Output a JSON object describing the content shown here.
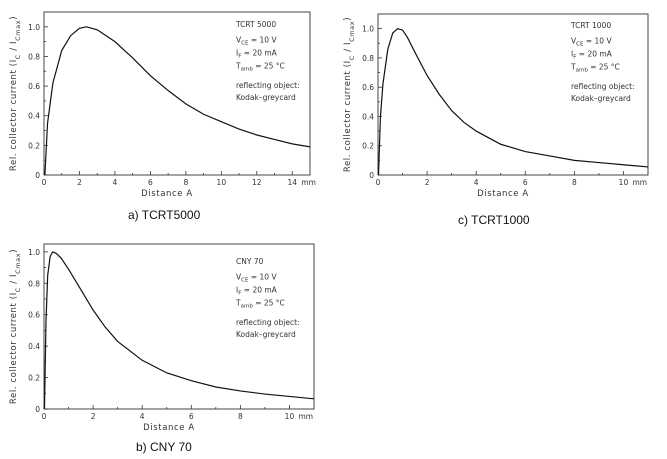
{
  "chart_data": [
    {
      "id": "tcrt5000",
      "type": "line",
      "caption": "a) TCRT5000",
      "title": "TCRT 5000",
      "xlabel": "Distance A",
      "x_unit": "mm",
      "ylabel": "Rel. collector current (I_C / I_Cmax)",
      "xlim": [
        0,
        15
      ],
      "ylim": [
        0,
        1.1
      ],
      "xticks": [
        0,
        2,
        4,
        6,
        8,
        10,
        12,
        14
      ],
      "yticks": [
        0,
        0.2,
        0.4,
        0.6,
        0.8,
        1.0
      ],
      "grid": false,
      "annotations": {
        "vce": "= 10 V",
        "if": "= 20 mA",
        "tamb": "= 25 °C",
        "object_line1": "reflecting object:",
        "object_line2": "Kodak–greycard"
      },
      "series": [
        {
          "x": [
            0.05,
            0.2,
            0.5,
            1.0,
            1.5,
            2.0,
            2.4,
            3.0,
            4.0,
            5.0,
            6.0,
            7.0,
            8.0,
            9.0,
            10.0,
            11.0,
            12.0,
            13.0,
            14.0,
            15.0
          ],
          "y": [
            0.0,
            0.35,
            0.62,
            0.84,
            0.94,
            0.99,
            1.0,
            0.98,
            0.9,
            0.79,
            0.67,
            0.57,
            0.48,
            0.41,
            0.36,
            0.31,
            0.27,
            0.24,
            0.21,
            0.19
          ]
        }
      ]
    },
    {
      "id": "tcrt1000",
      "type": "line",
      "caption": "c) TCRT1000",
      "title": "TCRT 1000",
      "xlabel": "Distance A",
      "x_unit": "mm",
      "ylabel": "Rel. collector current (I_C / I_Cmax)",
      "xlim": [
        0,
        11
      ],
      "ylim": [
        0,
        1.1
      ],
      "xticks": [
        0,
        2,
        4,
        6,
        8,
        10
      ],
      "yticks": [
        0,
        0.2,
        0.4,
        0.6,
        0.8,
        1.0
      ],
      "grid": false,
      "annotations": {
        "vce": "= 10 V",
        "if": "= 20 mA",
        "tamb": "= 25 °C",
        "object_line1": "reflecting object:",
        "object_line2": "Kodak–greycard"
      },
      "series": [
        {
          "x": [
            0.02,
            0.1,
            0.2,
            0.4,
            0.6,
            0.8,
            1.0,
            1.2,
            1.5,
            2.0,
            2.5,
            3.0,
            3.5,
            4.0,
            5.0,
            6.0,
            7.0,
            8.0,
            9.0,
            10.0,
            11.0
          ],
          "y": [
            0.0,
            0.4,
            0.62,
            0.86,
            0.97,
            1.0,
            0.99,
            0.94,
            0.84,
            0.68,
            0.55,
            0.44,
            0.36,
            0.3,
            0.21,
            0.16,
            0.13,
            0.1,
            0.085,
            0.07,
            0.055
          ]
        }
      ]
    },
    {
      "id": "cny70",
      "type": "line",
      "caption": "b) CNY 70",
      "title": "CNY 70",
      "xlabel": "Distance A",
      "x_unit": "mm",
      "ylabel": "Rel. collector current (I_C / I_Cmax)",
      "xlim": [
        0,
        11
      ],
      "ylim": [
        0,
        1.05
      ],
      "xticks": [
        0,
        2,
        4,
        6,
        8,
        10
      ],
      "yticks": [
        0,
        0.2,
        0.4,
        0.6,
        0.8,
        1.0
      ],
      "grid": false,
      "annotations": {
        "vce": "= 10 V",
        "if": "= 20 mA",
        "tamb": "= 25 °C",
        "object_line1": "reflecting object:",
        "object_line2": "Kodak–greycard"
      },
      "series": [
        {
          "x": [
            0.02,
            0.08,
            0.15,
            0.25,
            0.35,
            0.5,
            0.7,
            1.0,
            1.5,
            2.0,
            2.5,
            3.0,
            4.0,
            5.0,
            6.0,
            7.0,
            8.0,
            9.0,
            10.0,
            11.0
          ],
          "y": [
            0.0,
            0.55,
            0.85,
            0.97,
            1.0,
            0.99,
            0.96,
            0.89,
            0.76,
            0.63,
            0.52,
            0.43,
            0.31,
            0.23,
            0.18,
            0.14,
            0.115,
            0.095,
            0.08,
            0.065
          ]
        }
      ]
    }
  ]
}
